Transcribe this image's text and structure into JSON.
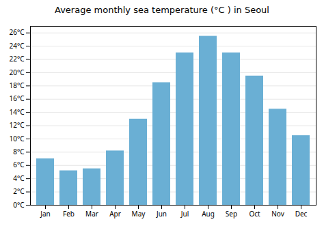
{
  "chart_data": {
    "type": "bar",
    "title": "Average monthly sea temperature (°C ) in Seoul",
    "categories": [
      "Jan",
      "Feb",
      "Mar",
      "Apr",
      "May",
      "Jun",
      "Jul",
      "Aug",
      "Sep",
      "Oct",
      "Nov",
      "Dec"
    ],
    "values": [
      7.0,
      5.2,
      5.5,
      8.2,
      13.0,
      18.5,
      23.0,
      25.5,
      23.0,
      19.5,
      14.5,
      10.5
    ],
    "color": "#6aafd4",
    "ylim": [
      0,
      27
    ],
    "yticks": [
      {
        "value": 0,
        "label": "0°C"
      },
      {
        "value": 2,
        "label": "2°C"
      },
      {
        "value": 4,
        "label": "4°C"
      },
      {
        "value": 6,
        "label": "6°C"
      },
      {
        "value": 8,
        "label": "8°C"
      },
      {
        "value": 10,
        "label": "10°C"
      },
      {
        "value": 12,
        "label": "12°C"
      },
      {
        "value": 14,
        "label": "14°C"
      },
      {
        "value": 16,
        "label": "16°C"
      },
      {
        "value": 18,
        "label": "18°C"
      },
      {
        "value": 20,
        "label": "20°C"
      },
      {
        "value": 22,
        "label": "22°C"
      },
      {
        "value": 24,
        "label": "24°C"
      },
      {
        "value": 26,
        "label": "26°C"
      }
    ],
    "grid": true
  }
}
